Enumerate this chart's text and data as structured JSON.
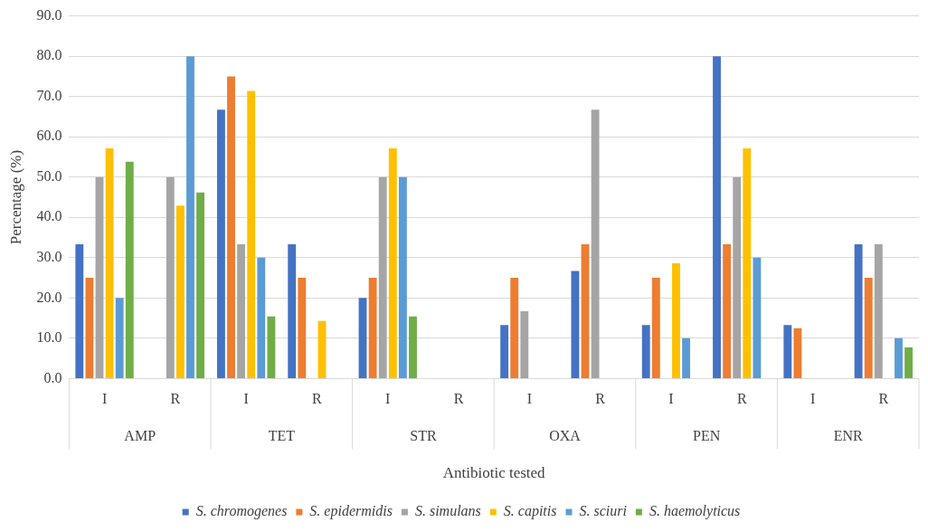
{
  "chart_data": {
    "type": "bar",
    "xlabel": "Antibiotic tested",
    "ylabel": "Percentage (%)",
    "categories": [
      "I",
      "R",
      "I",
      "R",
      "I",
      "R",
      "I",
      "R",
      "I",
      "R",
      "I",
      "R"
    ],
    "annotations": [
      "AMP",
      "TET",
      "STR",
      "OXA",
      "PEN",
      "ENR"
    ],
    "series": [
      {
        "name": "S. chromogenes",
        "color": "#4472c4",
        "values": [
          33.3,
          0,
          66.7,
          33.3,
          20,
          0,
          13.3,
          26.7,
          13.3,
          80,
          13.3,
          33.3
        ]
      },
      {
        "name": "S. epidermidis",
        "color": "#ed7d31",
        "values": [
          25,
          0,
          75,
          25,
          25,
          0,
          25,
          33.3,
          25,
          33.3,
          12.5,
          25
        ]
      },
      {
        "name": "S. simulans",
        "color": "#a5a5a5",
        "values": [
          50,
          50,
          33.3,
          0,
          50,
          0,
          16.7,
          66.7,
          0,
          50,
          0,
          33.3
        ]
      },
      {
        "name": "S. capitis",
        "color": "#ffc000",
        "values": [
          57.1,
          42.9,
          71.4,
          14.3,
          57.1,
          0,
          0,
          0,
          28.6,
          57.1,
          0,
          0
        ]
      },
      {
        "name": "S. sciuri",
        "color": "#5b9bd5",
        "values": [
          20,
          80,
          30,
          0,
          50,
          0,
          0,
          0,
          10,
          30,
          0,
          10
        ]
      },
      {
        "name": "S. haemolyticus",
        "color": "#70ad47",
        "values": [
          53.8,
          46.2,
          15.4,
          0,
          15.4,
          0,
          0,
          0,
          0,
          0,
          0,
          7.7
        ]
      }
    ],
    "ylim": [
      0,
      90
    ],
    "yticks": [
      {
        "value": 0,
        "label": "0.0"
      },
      {
        "value": 10,
        "label": "10.0"
      },
      {
        "value": 20,
        "label": "20.0"
      },
      {
        "value": 30,
        "label": "30.0"
      },
      {
        "value": 40,
        "label": "40.0"
      },
      {
        "value": 50,
        "label": "50.0"
      },
      {
        "value": 60,
        "label": "60.0"
      },
      {
        "value": 70,
        "label": "70.0"
      },
      {
        "value": 80,
        "label": "80.0"
      },
      {
        "value": 90,
        "label": "90.0"
      }
    ],
    "grid": "y",
    "legend": "bottom"
  }
}
